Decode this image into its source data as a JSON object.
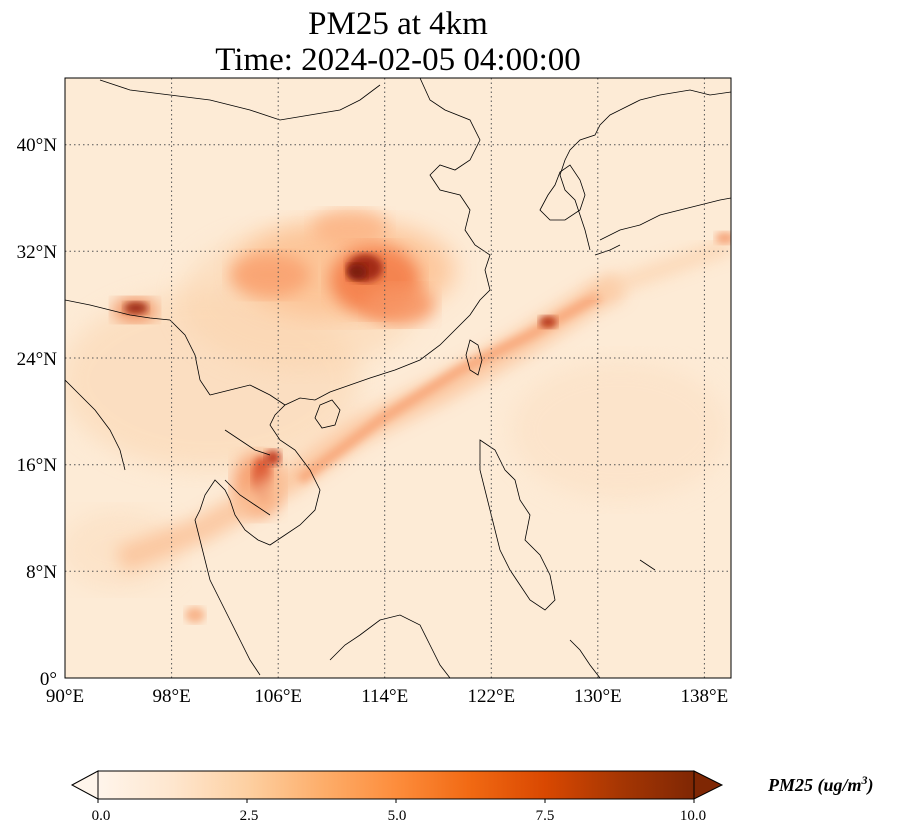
{
  "title_line1": "PM25 at 4km",
  "title_line2": "Time: 2024-02-05 04:00:00",
  "x_ticks": [
    "90°E",
    "98°E",
    "106°E",
    "114°E",
    "122°E",
    "130°E",
    "138°E"
  ],
  "y_ticks": [
    "0°",
    "8°N",
    "16°N",
    "24°N",
    "32°N",
    "40°N"
  ],
  "colorbar": {
    "label_main": "PM25 (ug/m",
    "label_sup": "3",
    "label_close": ")",
    "ticks": [
      "0.0",
      "2.5",
      "5.0",
      "7.5",
      "10.0"
    ],
    "colors": [
      "#fff5eb",
      "#fee6ce",
      "#fdd0a2",
      "#fdae6b",
      "#fd8d3c",
      "#f16913",
      "#d94801",
      "#a63603",
      "#7f2704"
    ],
    "extend": "both"
  },
  "map": {
    "lon_range": [
      90,
      140
    ],
    "lat_range": [
      0,
      45
    ],
    "gridlines": "dotted"
  }
}
